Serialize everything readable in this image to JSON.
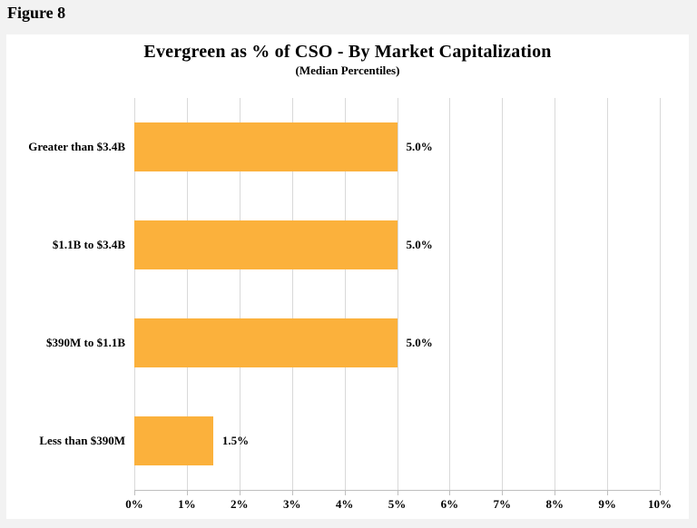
{
  "figure_label": "Figure 8",
  "chart_data": {
    "type": "bar",
    "orientation": "horizontal",
    "title": "Evergreen as % of CSO - By Market Capitalization",
    "subtitle": "(Median Percentiles)",
    "categories": [
      "Greater than $3.4B",
      "$1.1B to $3.4B",
      "$390M to $1.1B",
      "Less than $390M"
    ],
    "values": [
      5.0,
      5.0,
      5.0,
      1.5
    ],
    "value_labels": [
      "5.0%",
      "5.0%",
      "5.0%",
      "1.5%"
    ],
    "xlim": [
      0,
      10
    ],
    "x_tick_labels": [
      "0%",
      "1%",
      "2%",
      "3%",
      "4%",
      "5%",
      "6%",
      "7%",
      "8%",
      "9%",
      "10%"
    ],
    "grid": true,
    "legend": "none",
    "bar_color": "#FBB13C",
    "gridline_color": "#D9D9D9",
    "axis_color": "#BFBFBF",
    "text_color": "#000000",
    "panel_color": "#FFFFFF",
    "page_background": "#F2F2F2"
  }
}
